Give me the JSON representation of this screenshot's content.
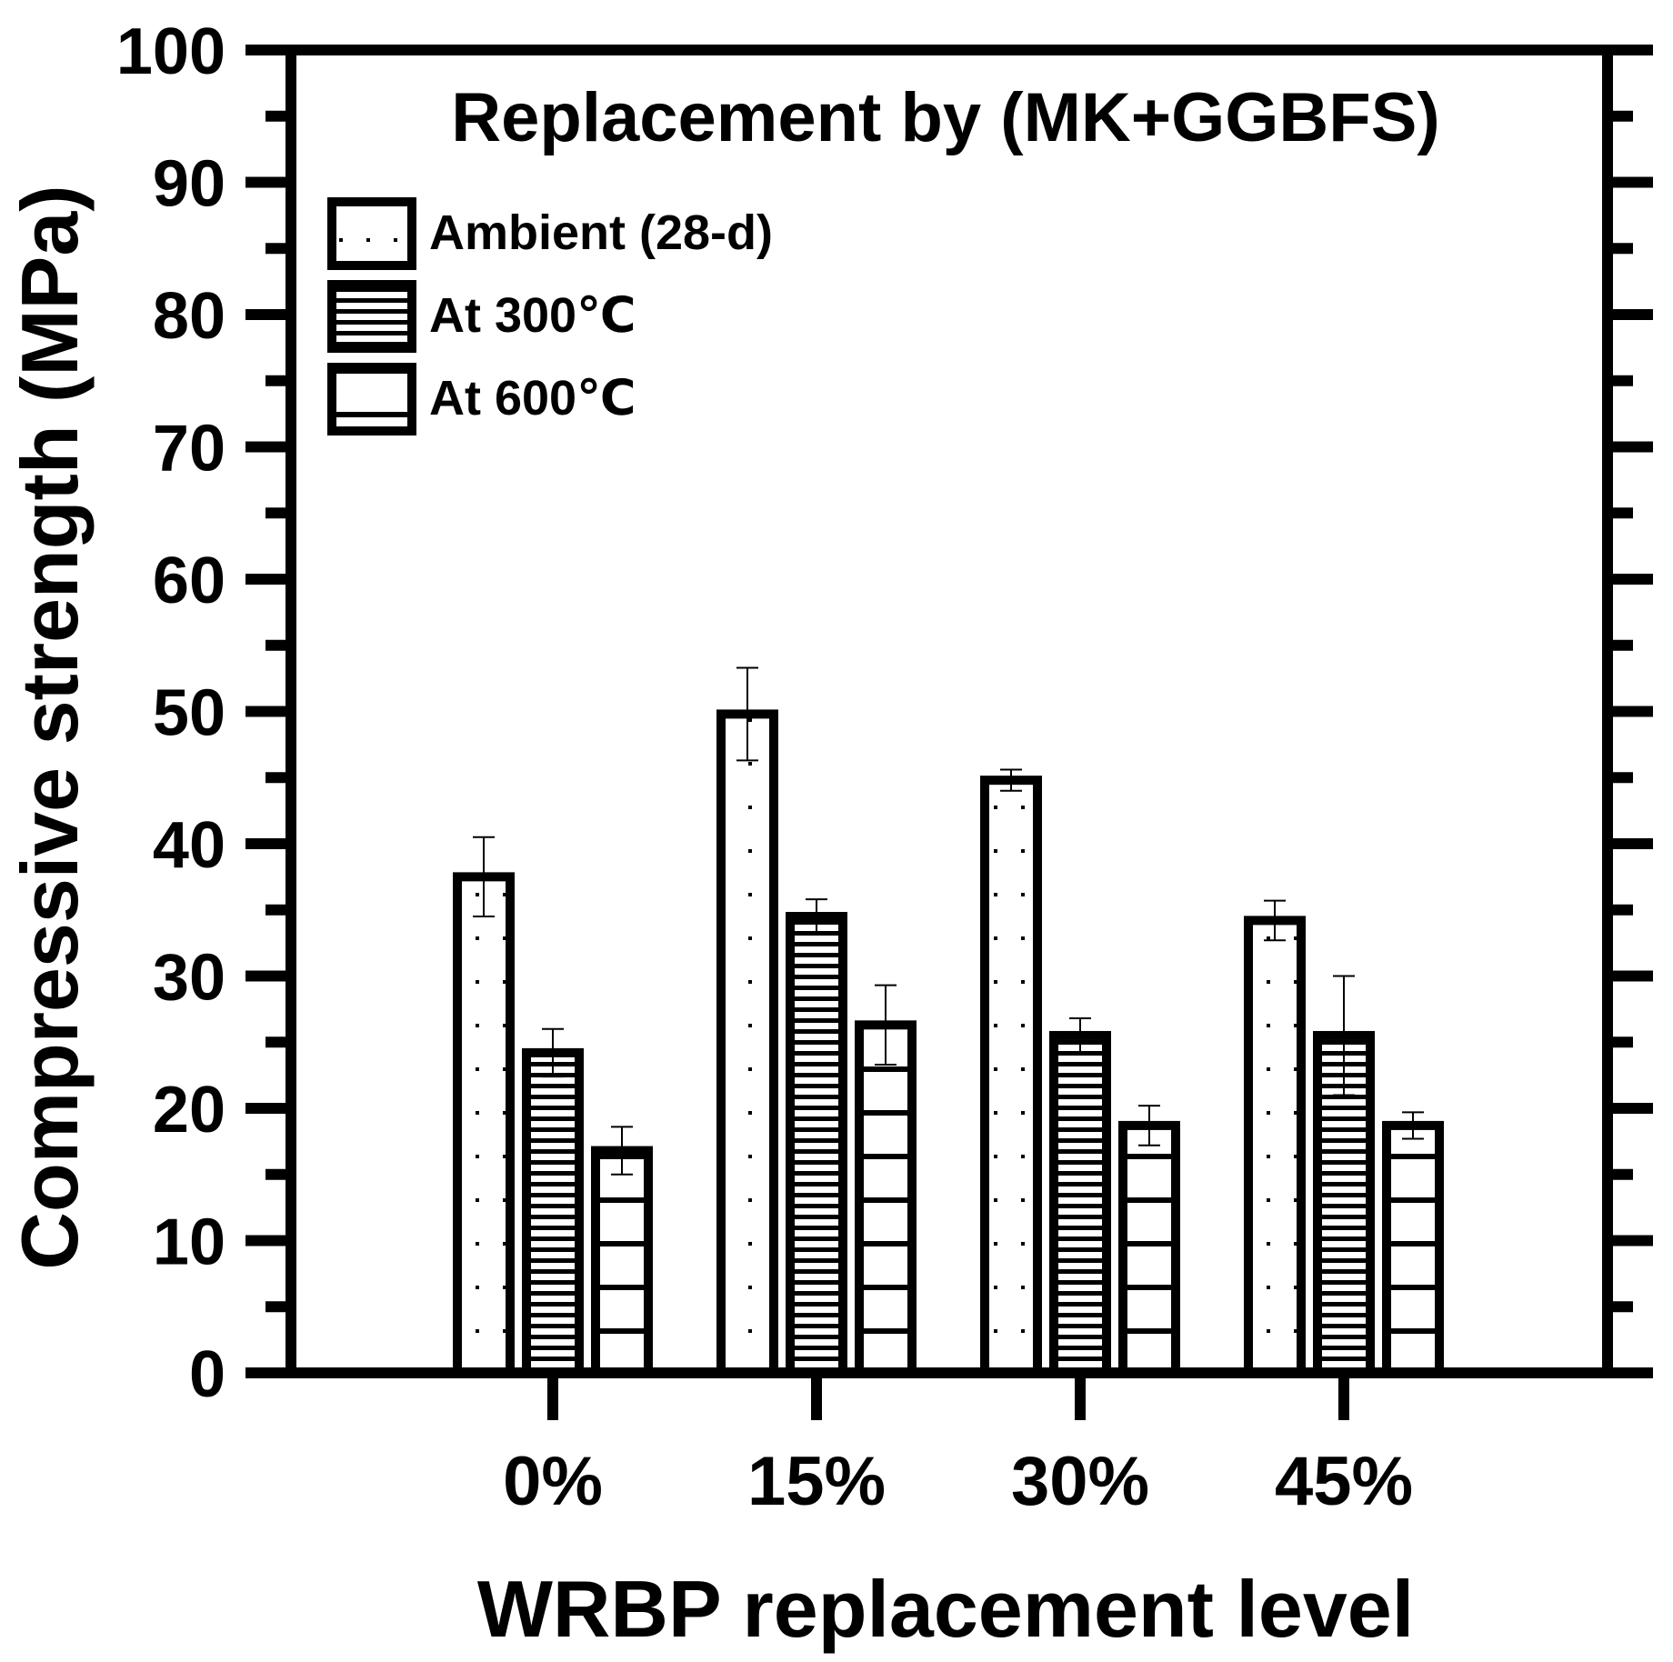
{
  "chart_data": {
    "type": "bar",
    "title": "Replacement by (MK+GGBFS)",
    "xlabel": "WRBP replacement level",
    "ylabel": "Compressive strength (MPa)",
    "ylim": [
      0,
      100
    ],
    "yticks": [
      "0",
      "10",
      "20",
      "30",
      "40",
      "50",
      "60",
      "70",
      "80",
      "90",
      "100"
    ],
    "categories": [
      "0%",
      "15%",
      "30%",
      "45%"
    ],
    "series": [
      {
        "name": "Ambient (28-d)",
        "pattern": "dots",
        "values": [
          37.5,
          49.8,
          44.8,
          34.2
        ],
        "errors": [
          3.0,
          3.5,
          0.8,
          1.5
        ]
      },
      {
        "name": "At 300℃",
        "pattern": "dense-lines",
        "values": [
          24.2,
          34.5,
          25.5,
          25.5
        ],
        "errors": [
          1.8,
          1.3,
          1.3,
          4.5
        ]
      },
      {
        "name": "At 600℃",
        "pattern": "lines",
        "values": [
          16.8,
          26.3,
          18.7,
          18.7
        ],
        "errors": [
          1.8,
          3.0,
          1.5,
          1.0
        ]
      }
    ],
    "legend_position": "top-left",
    "grid": false,
    "colors": {
      "stroke": "#000000",
      "fill": "#ffffff"
    }
  }
}
